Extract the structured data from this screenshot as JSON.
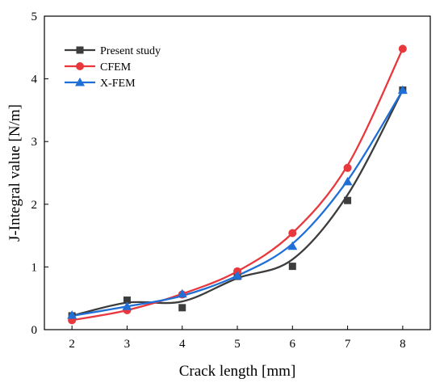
{
  "chart_data": {
    "type": "scatter",
    "title": "",
    "xlabel": "Crack length [mm]",
    "ylabel": "J-Integral value [N/m]",
    "xlim": [
      1.5,
      8.5
    ],
    "ylim": [
      0,
      5
    ],
    "xticks": [
      2,
      3,
      4,
      5,
      6,
      7,
      8
    ],
    "yticks": [
      0,
      1,
      2,
      3,
      4,
      5
    ],
    "grid": false,
    "legend_position": "top-left",
    "x": [
      2,
      3,
      4,
      5,
      6,
      7,
      8
    ],
    "series": [
      {
        "name": "Present study",
        "marker": "square",
        "color": "#3d3d3d",
        "values": [
          0.22,
          0.47,
          0.35,
          0.85,
          1.01,
          2.06,
          3.82
        ],
        "fit_curve": [
          0.22,
          0.43,
          0.45,
          0.82,
          1.12,
          2.15,
          3.82
        ]
      },
      {
        "name": "CFEM",
        "marker": "circle",
        "color": "#e8383d",
        "values": [
          0.15,
          0.31,
          0.56,
          0.93,
          1.54,
          2.58,
          4.48
        ],
        "fit_curve": [
          0.15,
          0.31,
          0.57,
          0.93,
          1.54,
          2.62,
          4.48
        ]
      },
      {
        "name": "X-FEM",
        "marker": "triangle",
        "color": "#1f6fd6",
        "values": [
          0.23,
          0.37,
          0.57,
          0.86,
          1.33,
          2.36,
          3.82
        ],
        "fit_curve": [
          0.22,
          0.37,
          0.54,
          0.86,
          1.37,
          2.38,
          3.82
        ]
      }
    ]
  }
}
